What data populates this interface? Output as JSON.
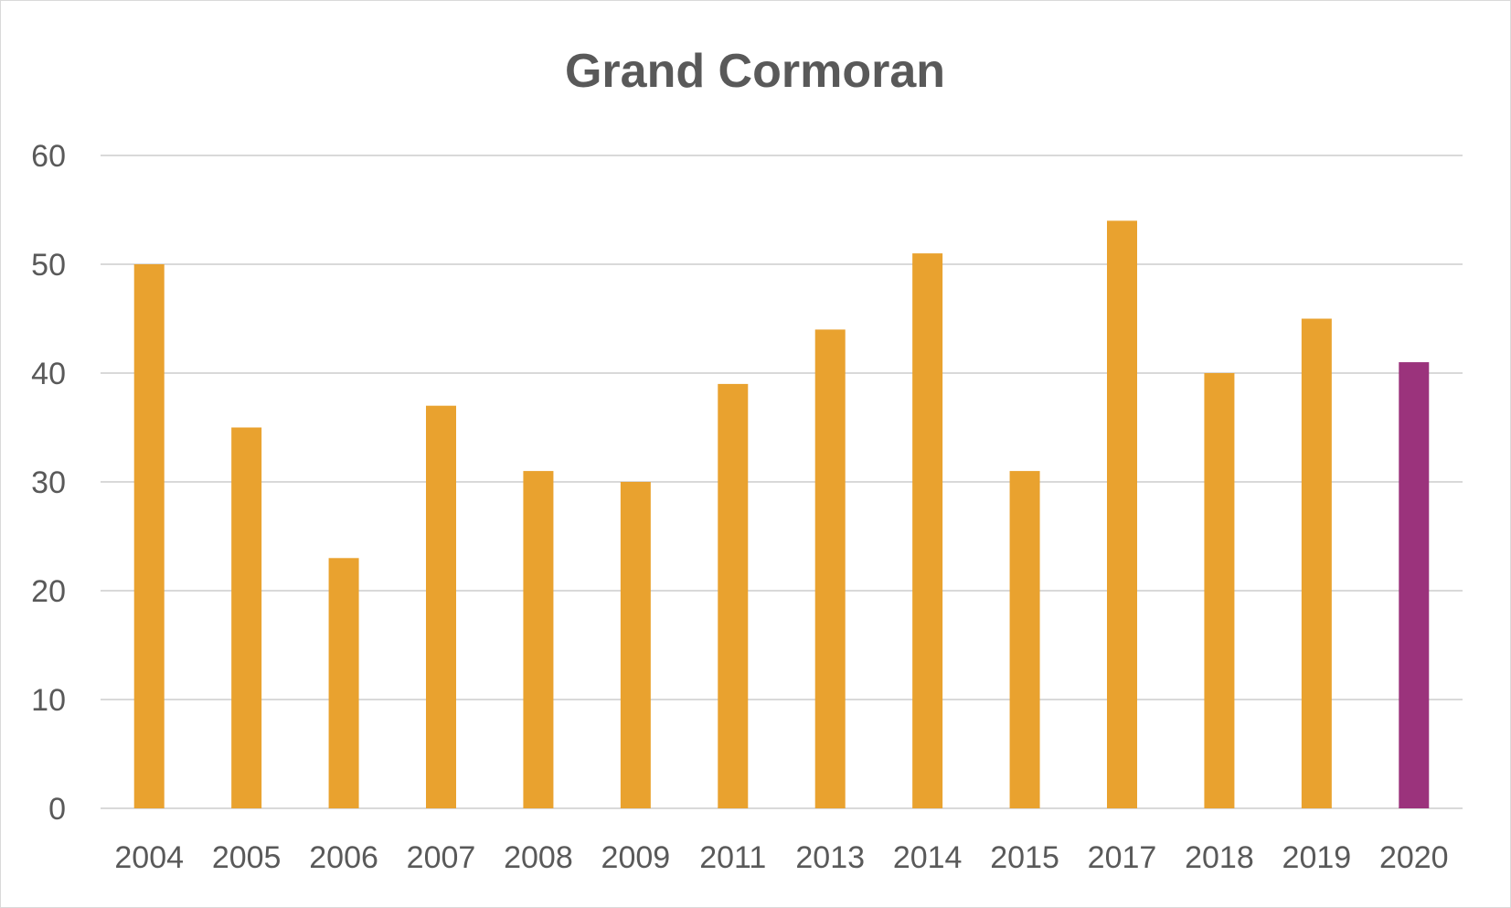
{
  "chart_data": {
    "type": "bar",
    "title": "Grand Cormoran",
    "categories": [
      "2004",
      "2005",
      "2006",
      "2007",
      "2008",
      "2009",
      "2011",
      "2013",
      "2014",
      "2015",
      "2017",
      "2018",
      "2019",
      "2020"
    ],
    "values": [
      50,
      35,
      23,
      37,
      31,
      30,
      39,
      44,
      51,
      31,
      54,
      40,
      45,
      41
    ],
    "ylim": [
      0,
      60
    ],
    "yticks": [
      0,
      10,
      20,
      30,
      40,
      50,
      60
    ],
    "grid": true,
    "colors": {
      "bar": "#E9A22F",
      "highlight_bar": "#9B337C",
      "highlight_category": "2020"
    }
  }
}
